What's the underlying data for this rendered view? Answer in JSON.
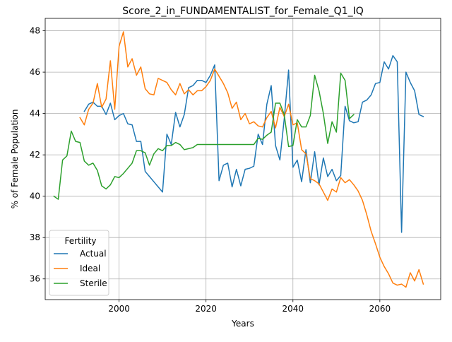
{
  "chart_data": {
    "type": "line",
    "title": "Score_2_in_FUNDAMENTALIST_for_Female_Q1_IQ",
    "xlabel": "Years",
    "ylabel": "% of Female Population",
    "xlim": [
      1983,
      2074
    ],
    "ylim": [
      35.0,
      48.6
    ],
    "x_ticks": [
      2000,
      2020,
      2040,
      2060
    ],
    "x_tick_labels": [
      "2000",
      "2020",
      "2040",
      "2060"
    ],
    "y_ticks": [
      36,
      38,
      40,
      42,
      44,
      46,
      48
    ],
    "y_tick_labels": [
      "36",
      "38",
      "40",
      "42",
      "44",
      "46",
      "48"
    ],
    "grid": true,
    "legend": {
      "title": "Fertility",
      "position": "lower-left"
    },
    "series": [
      {
        "name": "Actual",
        "color": "#1f77b4",
        "x": [
          1992,
          1993,
          1994,
          1995,
          1996,
          1997,
          1998,
          1999,
          2000,
          2001,
          2002,
          2003,
          2004,
          2005,
          2006,
          2007,
          2008,
          2009,
          2010,
          2011,
          2012,
          2013,
          2014,
          2015,
          2016,
          2017,
          2018,
          2019,
          2020,
          2021,
          2022,
          2023,
          2024,
          2025,
          2026,
          2027,
          2028,
          2029,
          2030,
          2031,
          2032,
          2033,
          2034,
          2035,
          2036,
          2037,
          2038,
          2039,
          2040,
          2041,
          2042,
          2043,
          2044,
          2045,
          2046,
          2047,
          2048,
          2049,
          2050,
          2051,
          2052,
          2053,
          2054,
          2055,
          2056,
          2057,
          2058,
          2059,
          2060,
          2061,
          2062,
          2063,
          2064,
          2065,
          2066,
          2067,
          2068,
          2069,
          2070
        ],
        "y": [
          44.1,
          44.45,
          44.55,
          44.35,
          44.35,
          43.95,
          44.5,
          43.7,
          43.9,
          44.0,
          43.5,
          43.45,
          42.65,
          42.65,
          41.2,
          40.95,
          40.7,
          40.45,
          40.2,
          43.0,
          42.5,
          44.05,
          43.35,
          43.95,
          45.25,
          45.35,
          45.6,
          45.6,
          45.5,
          45.85,
          46.35,
          40.75,
          41.5,
          41.6,
          40.45,
          41.3,
          40.5,
          41.3,
          41.35,
          41.45,
          43.0,
          42.5,
          44.45,
          45.35,
          42.45,
          41.75,
          43.75,
          46.1,
          41.4,
          41.75,
          40.7,
          42.25,
          40.65,
          42.15,
          40.55,
          41.85,
          40.95,
          41.3,
          40.75,
          41.0,
          44.35,
          43.65,
          43.55,
          43.6,
          44.55,
          44.65,
          44.9,
          45.45,
          45.5,
          46.5,
          46.15,
          46.8,
          46.5,
          38.25,
          46.0,
          45.5,
          45.1,
          43.95,
          43.85
        ]
      },
      {
        "name": "Ideal",
        "color": "#ff7f0e",
        "x": [
          1991,
          1992,
          1993,
          1994,
          1995,
          1996,
          1997,
          1998,
          1999,
          2000,
          2001,
          2002,
          2003,
          2004,
          2005,
          2006,
          2007,
          2008,
          2009,
          2010,
          2011,
          2012,
          2013,
          2014,
          2015,
          2016,
          2017,
          2018,
          2019,
          2020,
          2021,
          2022,
          2023,
          2024,
          2025,
          2026,
          2027,
          2028,
          2029,
          2030,
          2031,
          2032,
          2033,
          2034,
          2035,
          2036,
          2037,
          2038,
          2039,
          2040,
          2041,
          2042,
          2043,
          2044,
          2045,
          2046,
          2047,
          2048,
          2049,
          2050,
          2051,
          2052,
          2053,
          2054,
          2055,
          2056,
          2057,
          2058,
          2059,
          2060,
          2061,
          2062,
          2063,
          2064,
          2065,
          2066,
          2067,
          2068,
          2069,
          2070
        ],
        "y": [
          43.8,
          43.45,
          44.2,
          44.5,
          45.45,
          44.3,
          44.7,
          46.55,
          44.2,
          47.25,
          47.95,
          46.25,
          46.65,
          45.85,
          46.25,
          45.2,
          44.95,
          44.9,
          45.7,
          45.6,
          45.5,
          45.15,
          44.9,
          45.45,
          44.95,
          45.15,
          44.9,
          45.1,
          45.1,
          45.3,
          45.6,
          46.15,
          45.8,
          45.45,
          45.0,
          44.25,
          44.55,
          43.7,
          44.0,
          43.5,
          43.6,
          43.4,
          43.35,
          43.8,
          44.1,
          43.3,
          44.3,
          43.85,
          44.45,
          43.45,
          43.55,
          42.25,
          42.05,
          40.85,
          40.75,
          40.6,
          40.2,
          39.8,
          40.35,
          40.2,
          40.9,
          40.65,
          40.8,
          40.55,
          40.25,
          39.8,
          39.1,
          38.3,
          37.7,
          37.05,
          36.6,
          36.25,
          35.8,
          35.7,
          35.75,
          35.6,
          36.3,
          35.9,
          36.45,
          35.75
        ]
      },
      {
        "name": "Sterile",
        "color": "#2ca02c",
        "x": [
          1985,
          1986,
          1987,
          1988,
          1989,
          1990,
          1991,
          1992,
          1993,
          1994,
          1995,
          1996,
          1997,
          1998,
          1999,
          2000,
          2001,
          2002,
          2003,
          2004,
          2005,
          2006,
          2007,
          2008,
          2009,
          2010,
          2011,
          2012,
          2013,
          2014,
          2015,
          2016,
          2017,
          2018,
          2019,
          2020,
          2021,
          2022,
          2023,
          2024,
          2025,
          2026,
          2027,
          2028,
          2029,
          2030,
          2031,
          2032,
          2033,
          2034,
          2035,
          2036,
          2037,
          2038,
          2039,
          2040,
          2041,
          2042,
          2043,
          2044,
          2045,
          2046,
          2047,
          2048,
          2049,
          2050,
          2051,
          2052,
          2053,
          2054
        ],
        "y": [
          40.0,
          39.85,
          41.75,
          41.95,
          43.15,
          42.65,
          42.6,
          41.7,
          41.5,
          41.6,
          41.25,
          40.5,
          40.35,
          40.55,
          40.95,
          40.9,
          41.1,
          41.35,
          41.6,
          42.2,
          42.2,
          42.1,
          41.5,
          42.05,
          42.3,
          42.2,
          42.45,
          42.45,
          42.6,
          42.5,
          42.25,
          42.3,
          42.35,
          42.5,
          42.5,
          42.5,
          42.5,
          42.5,
          42.5,
          42.5,
          42.5,
          42.5,
          42.5,
          42.5,
          42.5,
          42.5,
          42.5,
          42.8,
          42.75,
          42.95,
          43.1,
          44.5,
          44.5,
          43.95,
          42.4,
          42.45,
          43.7,
          43.35,
          43.35,
          43.9,
          45.85,
          45.1,
          44.0,
          42.55,
          43.6,
          43.1,
          45.95,
          45.6,
          43.75,
          43.95
        ]
      }
    ]
  }
}
